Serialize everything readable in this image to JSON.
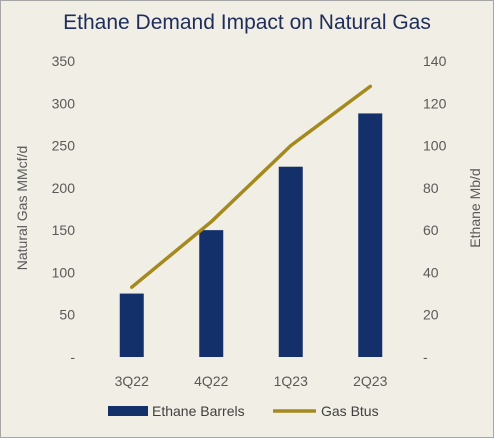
{
  "chart_data": {
    "type": "bar+line",
    "title": "Ethane Demand Impact on Natural Gas",
    "categories": [
      "3Q22",
      "4Q22",
      "1Q23",
      "2Q23"
    ],
    "series": [
      {
        "name": "Ethane Barrels",
        "type": "bar",
        "axis": "left",
        "values": [
          75,
          150,
          225,
          288
        ]
      },
      {
        "name": "Gas Btus",
        "type": "line",
        "axis": "right",
        "values": [
          33,
          64,
          100,
          128
        ]
      }
    ],
    "ylabel": "Natural Gas MMcf/d",
    "ylabel_right": "Ethane Mb/d",
    "ylim": [
      0,
      350
    ],
    "ylim_right": [
      0,
      140
    ],
    "yticks": [
      "-",
      "50",
      "100",
      "150",
      "200",
      "250",
      "300",
      "350"
    ],
    "yticks_right": [
      "-",
      "20",
      "40",
      "60",
      "80",
      "100",
      "120",
      "140"
    ],
    "grid": false,
    "legend_position": "bottom",
    "colors": {
      "bar": "#13306b",
      "line": "#a48a1e",
      "background": "#f1eee6",
      "title": "#1f2d5a"
    }
  }
}
